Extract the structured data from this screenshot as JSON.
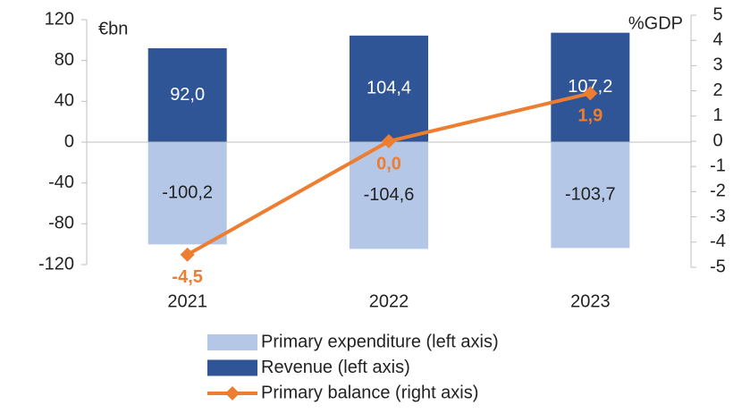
{
  "chart_data": {
    "type": "bar",
    "ylabel": "€bn",
    "y2label": "%GDP",
    "categories": [
      "2021",
      "2022",
      "2023"
    ],
    "ylim": [
      -120,
      120
    ],
    "yticks": [
      -120,
      -80,
      -40,
      0,
      40,
      80,
      120
    ],
    "y2lim": [
      -5,
      5
    ],
    "y2ticks": [
      -5,
      -4,
      -3,
      -2,
      -1,
      0,
      1,
      2,
      3,
      4,
      5
    ],
    "series": [
      {
        "name": "Primary expenditure (left axis)",
        "color": "#b4c7e7",
        "values": [
          -100.2,
          -104.6,
          -103.7
        ],
        "value_labels": [
          "-100,2",
          "-104,6",
          "-103,7"
        ]
      },
      {
        "name": "Revenue (left axis)",
        "color": "#2f5597",
        "values": [
          92.0,
          104.4,
          107.2
        ],
        "value_labels": [
          "92,0",
          "104,4",
          "107,2"
        ]
      },
      {
        "name": "Primary balance (right axis)",
        "type": "line",
        "axis": "y2",
        "color": "#ed7d31",
        "values": [
          -4.5,
          0.0,
          1.9
        ],
        "value_labels": [
          "-4,5",
          "0,0",
          "1,9"
        ]
      }
    ]
  }
}
